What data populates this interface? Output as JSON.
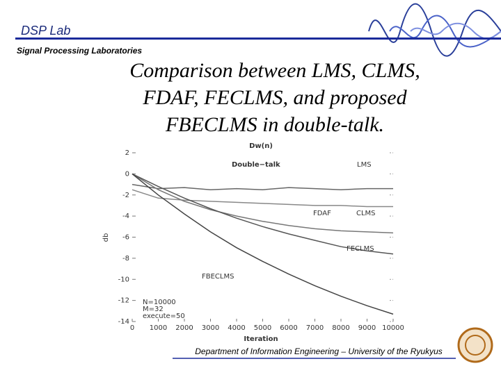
{
  "header": {
    "lab": "DSP Lab",
    "subtitle": "Signal Processing Laboratories"
  },
  "slide_title": [
    "Comparison between LMS, CLMS,",
    "FDAF,  FECLMS, and proposed",
    "FBECLMS in double-talk."
  ],
  "footer": "Department of Information Engineering  – University of the Ryukyus",
  "chart_data": {
    "type": "line",
    "title": "Dw(n)",
    "x_label": "Iteration",
    "y_label": "db",
    "x": [
      0,
      1000,
      2000,
      3000,
      4000,
      5000,
      6000,
      7000,
      8000,
      9000,
      10000
    ],
    "xlim": [
      0,
      10000
    ],
    "xticks": [
      0,
      1000,
      2000,
      3000,
      4000,
      5000,
      6000,
      7000,
      8000,
      9000,
      10000
    ],
    "ylim": [
      -14,
      2
    ],
    "yticks": [
      2,
      0,
      -2,
      -4,
      -6,
      -8,
      -10,
      -12,
      -14
    ],
    "grid": false,
    "annotations": [
      "Double−talk",
      "N=10000",
      "M=32",
      "execute=50"
    ],
    "series": [
      {
        "name": "LMS",
        "color": "#666666",
        "values": [
          -1.0,
          -1.4,
          -1.3,
          -1.5,
          -1.4,
          -1.5,
          -1.3,
          -1.4,
          -1.5,
          -1.4,
          -1.4
        ]
      },
      {
        "name": "CLMS",
        "color": "#888888",
        "values": [
          -1.5,
          -2.3,
          -2.5,
          -2.6,
          -2.7,
          -2.8,
          -2.9,
          -3.0,
          -3.0,
          -3.1,
          -3.1
        ]
      },
      {
        "name": "FDAF",
        "color": "#777777",
        "values": [
          0,
          -1.5,
          -2.6,
          -3.4,
          -4.0,
          -4.5,
          -4.9,
          -5.2,
          -5.4,
          -5.5,
          -5.6
        ]
      },
      {
        "name": "FECLMS",
        "color": "#555555",
        "values": [
          0,
          -1.2,
          -2.3,
          -3.3,
          -4.2,
          -5.0,
          -5.7,
          -6.3,
          -6.9,
          -7.3,
          -7.6
        ]
      },
      {
        "name": "FBECLMS",
        "color": "#444444",
        "values": [
          0,
          -2.0,
          -3.8,
          -5.5,
          -7.0,
          -8.3,
          -9.5,
          -10.6,
          -11.6,
          -12.5,
          -13.3
        ]
      }
    ]
  }
}
